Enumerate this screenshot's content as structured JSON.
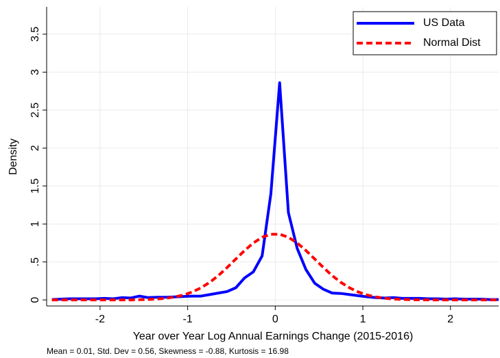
{
  "chart_data": {
    "type": "line",
    "x_label": "Year over Year Log Annual Earnings Change (2015-2016)",
    "y_label": "Density",
    "note": "Mean = 0.01, Std. Dev = 0.56, Skewness = -0.88, Kurtosis = 16.98",
    "x": [
      -2.55,
      -2.45,
      -2.35,
      -2.25,
      -2.15,
      -2.05,
      -1.95,
      -1.85,
      -1.75,
      -1.65,
      -1.55,
      -1.45,
      -1.35,
      -1.25,
      -1.15,
      -1.05,
      -0.95,
      -0.85,
      -0.75,
      -0.65,
      -0.55,
      -0.45,
      -0.35,
      -0.25,
      -0.15,
      -0.05,
      0.05,
      0.15,
      0.25,
      0.35,
      0.45,
      0.55,
      0.65,
      0.75,
      0.85,
      0.95,
      1.05,
      1.15,
      1.25,
      1.35,
      1.45,
      1.55,
      1.65,
      1.75,
      1.85,
      1.95,
      2.05,
      2.15,
      2.25,
      2.35,
      2.45,
      2.55
    ],
    "series": [
      {
        "name": "US Data",
        "color": "#0000ff",
        "dash": false,
        "values": [
          0.005,
          0.01,
          0.015,
          0.015,
          0.015,
          0.015,
          0.02,
          0.015,
          0.03,
          0.025,
          0.05,
          0.03,
          0.035,
          0.035,
          0.04,
          0.045,
          0.05,
          0.05,
          0.07,
          0.09,
          0.11,
          0.16,
          0.29,
          0.37,
          0.58,
          1.4,
          2.86,
          1.15,
          0.68,
          0.4,
          0.22,
          0.14,
          0.09,
          0.085,
          0.07,
          0.055,
          0.04,
          0.03,
          0.025,
          0.03,
          0.02,
          0.02,
          0.02,
          0.015,
          0.015,
          0.01,
          0.015,
          0.01,
          0.01,
          0.01,
          0.005,
          0.005
        ]
      },
      {
        "name": "Normal Dist",
        "color": "#ff0000",
        "dash": true,
        "values": [
          0,
          0,
          0,
          0,
          0,
          0,
          0,
          0,
          0,
          0,
          0.003,
          0.006,
          0.012,
          0.022,
          0.038,
          0.064,
          0.103,
          0.158,
          0.23,
          0.32,
          0.426,
          0.539,
          0.651,
          0.75,
          0.825,
          0.865,
          0.865,
          0.825,
          0.75,
          0.651,
          0.539,
          0.426,
          0.32,
          0.23,
          0.158,
          0.103,
          0.064,
          0.038,
          0.022,
          0.012,
          0.006,
          0.003,
          0.001,
          0,
          0,
          0,
          0,
          0,
          0,
          0,
          0,
          0
        ]
      }
    ],
    "xlim": [
      -2.61,
      2.55
    ],
    "xticks": [
      -2,
      -1,
      0,
      1,
      2
    ],
    "ylim": [
      -0.08,
      3.86
    ],
    "yticks": [
      0,
      {
        "value": 0.5,
        "label": ".5"
      },
      1,
      1.5,
      2,
      2.5,
      3,
      3.5
    ],
    "grid": true,
    "legend": "top-right"
  }
}
